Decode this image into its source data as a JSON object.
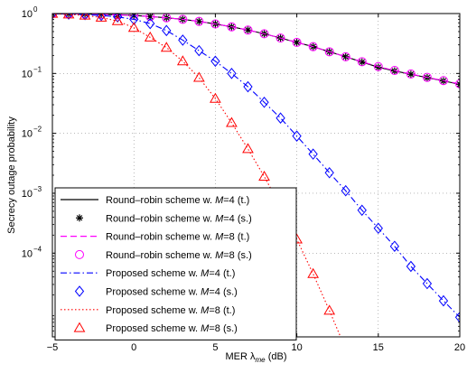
{
  "chart_data": {
    "type": "line",
    "xlabel_main": "MER λ",
    "xlabel_sub": "me",
    "xlabel_unit": " (dB)",
    "ylabel": "Secrecy outage probability",
    "xlim": [
      -5,
      20
    ],
    "ylim": [
      4e-06,
      1
    ],
    "y_scale": "log",
    "grid": true,
    "legend_position": "bottom-left",
    "x_ticks": [
      -5,
      0,
      5,
      10,
      15,
      20
    ],
    "x_tick_labels": [
      "−5",
      "0",
      "5",
      "10",
      "15",
      "20"
    ],
    "y_ticks": [
      1,
      0.1,
      0.01,
      0.001,
      0.0001
    ],
    "y_tick_labels": [
      {
        "base": "10",
        "exp": "0"
      },
      {
        "base": "10",
        "exp": "−1"
      },
      {
        "base": "10",
        "exp": "−2"
      },
      {
        "base": "10",
        "exp": "−3"
      },
      {
        "base": "10",
        "exp": "−4"
      }
    ],
    "series": [
      {
        "name_pre": "Round–robin scheme w. ",
        "name_var": "M",
        "name_post": "=4 (t.)",
        "color": "#000000",
        "line": "solid",
        "marker": "none",
        "x": [
          -5,
          -4,
          -3,
          -2,
          -1,
          0,
          1,
          2,
          3,
          4,
          5,
          6,
          7,
          8,
          9,
          10,
          11,
          12,
          13,
          14,
          15,
          16,
          17,
          18,
          19,
          20
        ],
        "y": [
          0.995,
          0.99,
          0.98,
          0.97,
          0.95,
          0.93,
          0.89,
          0.85,
          0.8,
          0.74,
          0.67,
          0.6,
          0.53,
          0.46,
          0.39,
          0.33,
          0.28,
          0.23,
          0.19,
          0.155,
          0.127,
          0.11,
          0.097,
          0.085,
          0.075,
          0.066
        ]
      },
      {
        "name_pre": "Round–robin scheme w. ",
        "name_var": "M",
        "name_post": "=4 (s.)",
        "color": "#000000",
        "line": "none",
        "marker": "asterisk",
        "x": [
          -5,
          -4,
          -3,
          -2,
          -1,
          0,
          1,
          2,
          3,
          4,
          5,
          6,
          7,
          8,
          9,
          10,
          11,
          12,
          13,
          14,
          15,
          16,
          17,
          18,
          19,
          20
        ],
        "y": [
          0.995,
          0.99,
          0.98,
          0.97,
          0.95,
          0.93,
          0.89,
          0.85,
          0.8,
          0.74,
          0.67,
          0.6,
          0.53,
          0.46,
          0.39,
          0.33,
          0.28,
          0.23,
          0.19,
          0.155,
          0.127,
          0.11,
          0.097,
          0.085,
          0.075,
          0.066
        ]
      },
      {
        "name_pre": "Round–robin scheme w. ",
        "name_var": "M",
        "name_post": "=8 (t.)",
        "color": "#ff00ff",
        "line": "dashed",
        "marker": "none",
        "x": [
          -5,
          -4,
          -3,
          -2,
          -1,
          0,
          1,
          2,
          3,
          4,
          5,
          6,
          7,
          8,
          9,
          10,
          11,
          12,
          13,
          14,
          15,
          16,
          17,
          18,
          19,
          20
        ],
        "y": [
          0.995,
          0.99,
          0.98,
          0.97,
          0.95,
          0.93,
          0.89,
          0.85,
          0.8,
          0.74,
          0.67,
          0.6,
          0.53,
          0.46,
          0.39,
          0.33,
          0.28,
          0.23,
          0.19,
          0.157,
          0.13,
          0.112,
          0.098,
          0.086,
          0.076,
          0.067
        ]
      },
      {
        "name_pre": "Round–robin scheme w. ",
        "name_var": "M",
        "name_post": "=8 (s.)",
        "color": "#ff00ff",
        "line": "none",
        "marker": "circle",
        "x": [
          -5,
          -4,
          -3,
          -2,
          -1,
          0,
          1,
          2,
          3,
          4,
          5,
          6,
          7,
          8,
          9,
          10,
          11,
          12,
          13,
          14,
          15,
          16,
          17,
          18,
          19,
          20
        ],
        "y": [
          0.995,
          0.99,
          0.98,
          0.97,
          0.95,
          0.93,
          0.89,
          0.85,
          0.8,
          0.74,
          0.67,
          0.6,
          0.53,
          0.46,
          0.39,
          0.33,
          0.28,
          0.23,
          0.19,
          0.157,
          0.13,
          0.112,
          0.098,
          0.086,
          0.076,
          0.067
        ]
      },
      {
        "name_pre": "Proposed scheme w. ",
        "name_var": "M",
        "name_post": "=4 (t.)",
        "color": "#0000ff",
        "line": "dashdot",
        "marker": "none",
        "x": [
          -5,
          -4,
          -3,
          -2,
          -1,
          0,
          1,
          2,
          3,
          4,
          5,
          6,
          7,
          8,
          9,
          10,
          11,
          12,
          13,
          14,
          15,
          16,
          17,
          18,
          19,
          20
        ],
        "y": [
          0.995,
          0.98,
          0.96,
          0.93,
          0.88,
          0.8,
          0.68,
          0.52,
          0.36,
          0.24,
          0.16,
          0.1,
          0.06,
          0.033,
          0.018,
          0.009,
          0.0045,
          0.0022,
          0.0011,
          0.00052,
          0.00026,
          0.00013,
          6e-05,
          3.1e-05,
          1.6e-05,
          8.5e-06
        ]
      },
      {
        "name_pre": "Proposed scheme w. ",
        "name_var": "M",
        "name_post": "=4 (s.)",
        "color": "#0000ff",
        "line": "none",
        "marker": "diamond",
        "x": [
          -5,
          -4,
          -3,
          -2,
          -1,
          0,
          1,
          2,
          3,
          4,
          5,
          6,
          7,
          8,
          9,
          10,
          11,
          12,
          13,
          14,
          15,
          16,
          17,
          18,
          19,
          20
        ],
        "y": [
          0.995,
          0.98,
          0.96,
          0.93,
          0.88,
          0.8,
          0.68,
          0.52,
          0.36,
          0.24,
          0.16,
          0.1,
          0.06,
          0.033,
          0.018,
          0.009,
          0.0045,
          0.0022,
          0.0011,
          0.00052,
          0.00026,
          0.00013,
          6e-05,
          3.1e-05,
          1.6e-05,
          8.5e-06
        ]
      },
      {
        "name_pre": "Proposed scheme w. ",
        "name_var": "M",
        "name_post": "=8 (t.)",
        "color": "#ff0000",
        "line": "dotted",
        "marker": "none",
        "x": [
          -5,
          -4,
          -3,
          -2,
          -1,
          0,
          1,
          2,
          3,
          4,
          5,
          6,
          7,
          8,
          9,
          10,
          11,
          12,
          13
        ],
        "y": [
          0.995,
          0.97,
          0.93,
          0.86,
          0.75,
          0.58,
          0.4,
          0.27,
          0.16,
          0.085,
          0.038,
          0.015,
          0.0055,
          0.0019,
          0.0006,
          0.00017,
          4.5e-05,
          1.1e-05,
          2.5e-06
        ]
      },
      {
        "name_pre": "Proposed scheme w. ",
        "name_var": "M",
        "name_post": "=8 (s.)",
        "color": "#ff0000",
        "line": "none",
        "marker": "triangle",
        "x": [
          -5,
          -4,
          -3,
          -2,
          -1,
          0,
          1,
          2,
          3,
          4,
          5,
          6,
          7,
          8,
          9,
          10,
          11,
          12,
          13
        ],
        "y": [
          0.995,
          0.97,
          0.93,
          0.86,
          0.75,
          0.58,
          0.4,
          0.27,
          0.16,
          0.085,
          0.038,
          0.015,
          0.0055,
          0.0019,
          0.0006,
          0.00017,
          4.5e-05,
          1.1e-05,
          2.5e-06
        ]
      }
    ]
  }
}
